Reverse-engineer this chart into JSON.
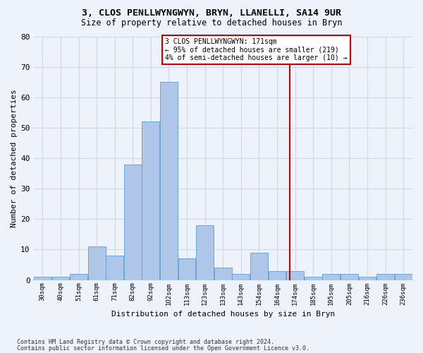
{
  "title1": "3, CLOS PENLLWYNGWYN, BRYN, LLANELLI, SA14 9UR",
  "title2": "Size of property relative to detached houses in Bryn",
  "xlabel": "Distribution of detached houses by size in Bryn",
  "ylabel": "Number of detached properties",
  "footer1": "Contains HM Land Registry data © Crown copyright and database right 2024.",
  "footer2": "Contains public sector information licensed under the Open Government Licence v3.0.",
  "categories": [
    "30sqm",
    "40sqm",
    "51sqm",
    "61sqm",
    "71sqm",
    "82sqm",
    "92sqm",
    "102sqm",
    "113sqm",
    "123sqm",
    "133sqm",
    "143sqm",
    "154sqm",
    "164sqm",
    "174sqm",
    "185sqm",
    "195sqm",
    "205sqm",
    "216sqm",
    "226sqm",
    "236sqm"
  ],
  "values": [
    1,
    1,
    2,
    11,
    8,
    38,
    52,
    65,
    7,
    18,
    4,
    2,
    9,
    3,
    3,
    1,
    2,
    2,
    1,
    2,
    2
  ],
  "bar_color": "#aec6e8",
  "bar_edge_color": "#5a9fd4",
  "grid_color": "#d0d8e8",
  "vline_color": "#cc0000",
  "annotation_text": "3 CLOS PENLLWYNGWYN: 171sqm\n← 95% of detached houses are smaller (219)\n4% of semi-detached houses are larger (10) →",
  "annotation_box_color": "#cc0000",
  "annotation_text_color": "#000000",
  "ylim": [
    0,
    80
  ],
  "background_color": "#eef2fb"
}
